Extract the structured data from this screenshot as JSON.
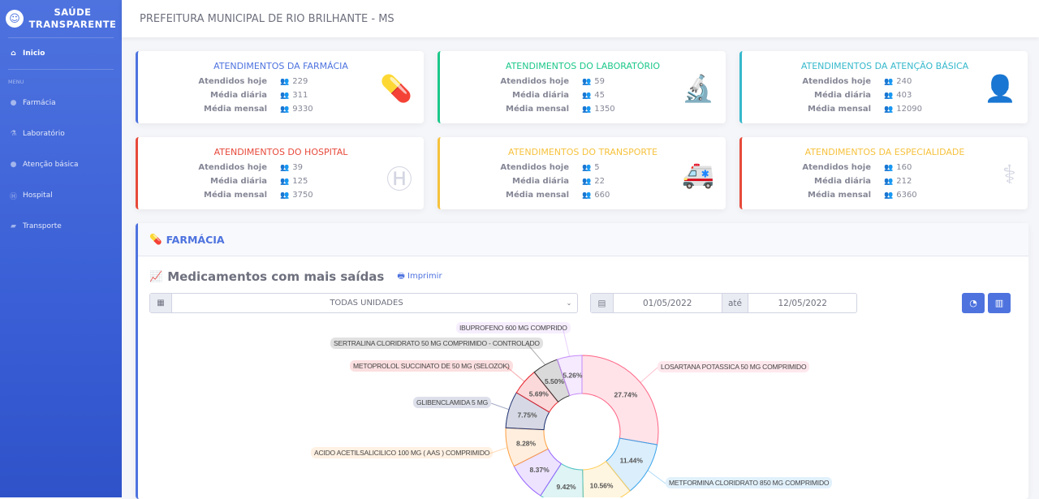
{
  "sidebar": {
    "brand": "SAÚDE TRANSPARENTE",
    "home": "Inicio",
    "menu_header": "MENU",
    "items": [
      {
        "label": "Farmácia",
        "icon": "pills-icon"
      },
      {
        "label": "Laboratório",
        "icon": "microscope-icon"
      },
      {
        "label": "Atenção básica",
        "icon": "user-md-icon"
      },
      {
        "label": "Hospital",
        "icon": "hospital-icon"
      },
      {
        "label": "Transporte",
        "icon": "ambulance-icon"
      }
    ]
  },
  "header": {
    "title": "PREFEITURA MUNICIPAL DE RIO BRILHANTE - MS"
  },
  "row_labels": {
    "today": "Atendidos hoje",
    "daily": "Média diária",
    "monthly": "Média mensal"
  },
  "cards": [
    {
      "title": "ATENDIMENTOS DA FARMÁCIA",
      "color": "#4e73df",
      "today": "229",
      "daily": "311",
      "monthly": "9330",
      "icon": "pills-icon",
      "glyph": "💊"
    },
    {
      "title": "ATENDIMENTOS DO LABORATÓRIO",
      "color": "#1cc88a",
      "today": "59",
      "daily": "45",
      "monthly": "1350",
      "icon": "microscope-icon",
      "glyph": "🔬"
    },
    {
      "title": "ATENDIMENTOS DA ATENÇÃO BÁSICA",
      "color": "#36b9cc",
      "today": "240",
      "daily": "403",
      "monthly": "12090",
      "icon": "user-md-icon",
      "glyph": "👤"
    },
    {
      "title": "ATENDIMENTOS DO HOSPITAL",
      "color": "#e74a3b",
      "today": "39",
      "daily": "125",
      "monthly": "3750",
      "icon": "hospital-icon",
      "glyph": "Ⓗ"
    },
    {
      "title": "ATENDIMENTOS DO TRANSPORTE",
      "color": "#f6c23e",
      "today": "5",
      "daily": "22",
      "monthly": "660",
      "icon": "ambulance-icon",
      "glyph": "🚑"
    },
    {
      "title": "ATENDIMENTOS DA ESPECIALIDADE",
      "color": "#f6c23e",
      "border": "#e74a3b",
      "today": "160",
      "daily": "212",
      "monthly": "6360",
      "icon": "stethoscope-icon",
      "glyph": "⚕"
    }
  ],
  "panel": {
    "title": "FARMÁCIA",
    "subtitle": "Medicamentos com mais saídas",
    "print": "Imprimir",
    "unit": "TODAS UNIDADES",
    "date_from": "01/05/2022",
    "date_sep": "até",
    "date_to": "12/05/2022"
  },
  "chart_data": {
    "type": "pie",
    "donut": true,
    "slices": [
      {
        "label": "LOSARTANA POTASSICA 50 MG COMPRIMIDO",
        "value": 27.74,
        "color": "#ff6384"
      },
      {
        "label": "METFORMINA CLORIDRATO 850 MG COMPRIMIDO",
        "value": 11.44,
        "color": "#36a2eb"
      },
      {
        "label": "",
        "value": 10.56,
        "color": "#ffcd56"
      },
      {
        "label": "",
        "value": 9.42,
        "color": "#4bc0c0"
      },
      {
        "label": "",
        "value": 8.37,
        "color": "#9966ff"
      },
      {
        "label": "ACIDO ACETILSALICILICO 100 MG ( AAS ) COMPRIMIDO",
        "value": 8.28,
        "color": "#ff9f40"
      },
      {
        "label": "GLIBENCLAMIDA 5 MG",
        "value": 7.75,
        "color": "#1d2f6f"
      },
      {
        "label": "METOPROLOL SUCCINATO DE 50 MG (SELOZOK)",
        "value": 5.69,
        "color": "#e8262f"
      },
      {
        "label": "SERTRALINA CLORIDRATO 50 MG COMPRIMIDO - CONTROLADO",
        "value": 5.5,
        "color": "#333333"
      },
      {
        "label": "IBUPROFENO 600 MG COMPRIDO",
        "value": 5.26,
        "color": "#c58af9"
      }
    ]
  }
}
